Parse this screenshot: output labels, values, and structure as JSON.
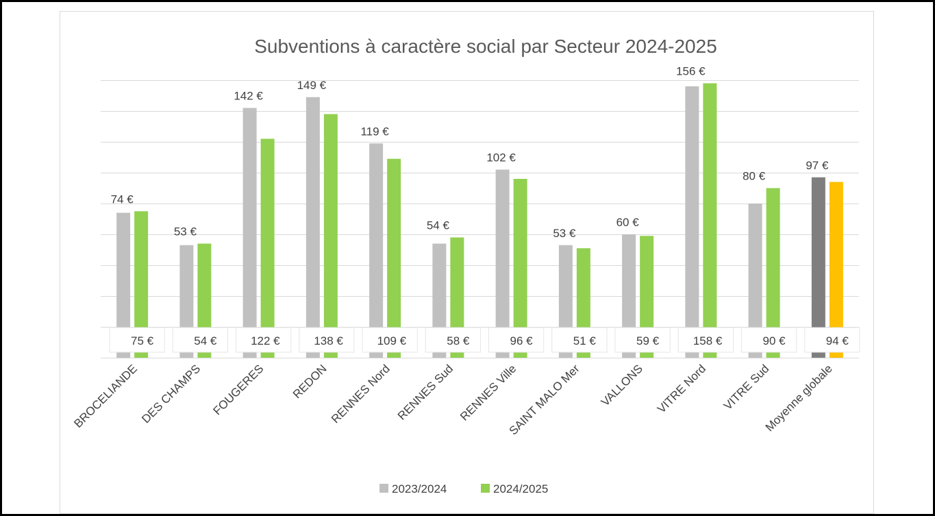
{
  "chart_data": {
    "type": "bar",
    "title": "Subventions à caractère social par Secteur 2024-2025",
    "categories": [
      "BROCELIANDE",
      "DES CHAMPS",
      "FOUGERES",
      "REDON",
      "RENNES Nord",
      "RENNES Sud",
      "RENNES Ville",
      "SAINT MALO Mer",
      "VALLONS",
      "VITRE Nord",
      "VITRE Sud",
      "Moyenne globale"
    ],
    "series": [
      {
        "name": "2023/2024",
        "values": [
          74,
          53,
          142,
          149,
          119,
          54,
          102,
          53,
          60,
          156,
          80,
          97
        ],
        "labels": [
          "74 €",
          "53 €",
          "142 €",
          "149 €",
          "119 €",
          "54 €",
          "102 €",
          "53 €",
          "60 €",
          "156 €",
          "80 €",
          "97 €"
        ],
        "color": "#c0c0c0",
        "highlight_color": "#7f7f7f"
      },
      {
        "name": "2024/2025",
        "values": [
          75,
          54,
          122,
          138,
          109,
          58,
          96,
          51,
          59,
          158,
          90,
          94
        ],
        "labels": [
          "75 €",
          "54 €",
          "122 €",
          "138 €",
          "109 €",
          "58 €",
          "96 €",
          "51 €",
          "59 €",
          "158 €",
          "90 €",
          "94 €"
        ],
        "color": "#92d050",
        "highlight_color": "#ffc000"
      }
    ],
    "ylim": [
      -20,
      160
    ],
    "y_tick_step": 20,
    "y_tick_labels_shown": false,
    "grid": true,
    "legend": "bottom",
    "xlabel": "",
    "ylabel": ""
  }
}
